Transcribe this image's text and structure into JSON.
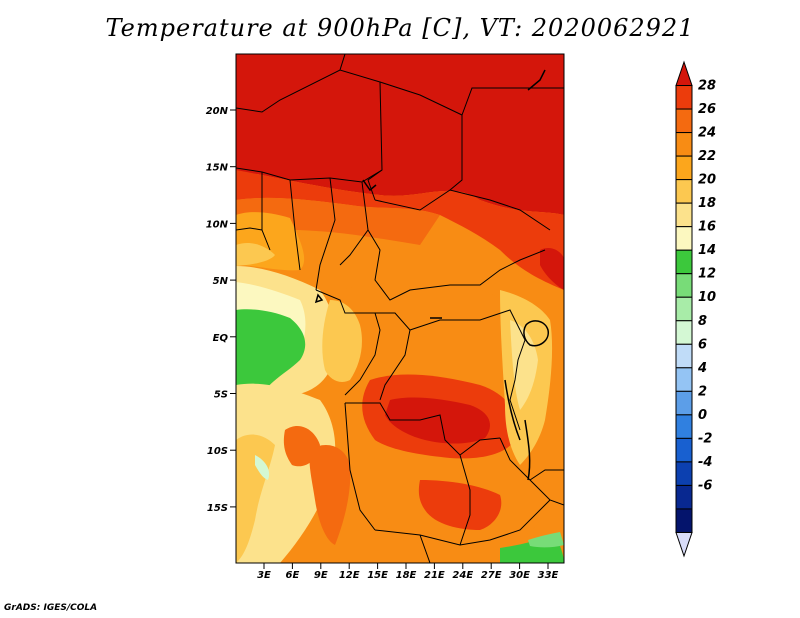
{
  "title": "Temperature at 900hPa [C], VT: 2020062921",
  "credit": "GrADS: IGES/COLA",
  "map": {
    "lat_range": [
      -20,
      25
    ],
    "lon_range": [
      0,
      34
    ],
    "lat_ticks": [
      "20N",
      "15N",
      "10N",
      "5N",
      "EQ",
      "5S",
      "10S",
      "15S"
    ],
    "lon_ticks": [
      "3E",
      "6E",
      "9E",
      "12E",
      "15E",
      "18E",
      "21E",
      "24E",
      "27E",
      "30E",
      "33E"
    ]
  },
  "colorbar": {
    "labels": [
      "28",
      "26",
      "24",
      "22",
      "20",
      "18",
      "16",
      "14",
      "12",
      "10",
      "8",
      "6",
      "4",
      "2",
      "0",
      "-2",
      "-4",
      "-6"
    ],
    "colors": [
      "#d4160b",
      "#ec3c0c",
      "#f46a10",
      "#f88c14",
      "#fca61c",
      "#fcc850",
      "#fce28c",
      "#fcf8c0",
      "#3cc83c",
      "#78dc78",
      "#a8eca8",
      "#d4f8d4",
      "#c0dcf8",
      "#94c4f4",
      "#5c9ee8",
      "#3080e0",
      "#1860d0",
      "#0c40b0",
      "#082890",
      "#04146c",
      "#d8dcf8"
    ]
  }
}
